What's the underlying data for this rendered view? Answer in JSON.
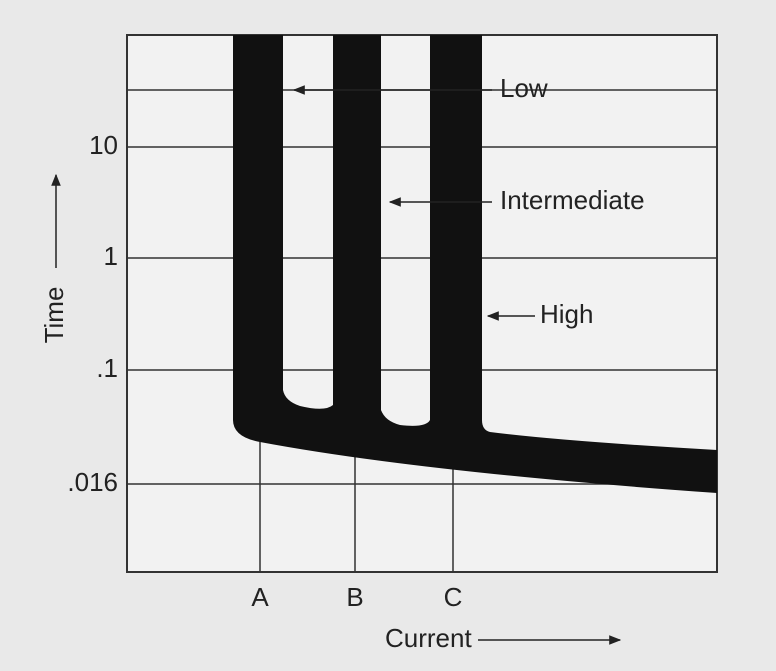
{
  "curves": {
    "low": "Low",
    "intermediate": "Intermediate",
    "high": "High"
  },
  "y_axis": {
    "title": "Time",
    "ticks": [
      "10",
      "1",
      ".1",
      ".016"
    ]
  },
  "x_axis": {
    "title": "Current",
    "ticks": [
      "A",
      "B",
      "C"
    ]
  }
}
